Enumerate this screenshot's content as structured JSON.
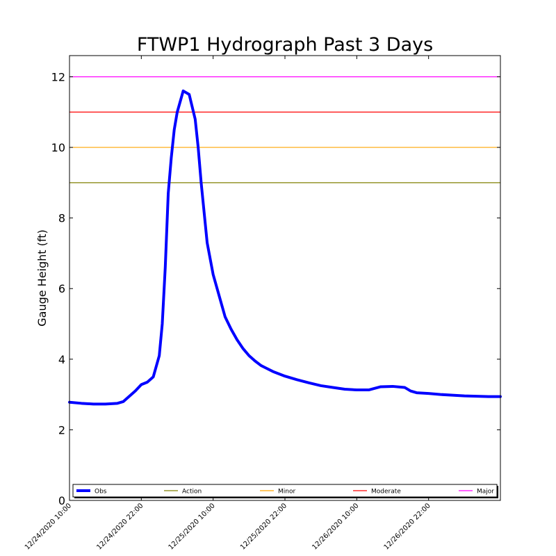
{
  "chart_data": {
    "type": "line",
    "title": "FTWP1 Hydrograph Past 3 Days",
    "xlabel": "",
    "ylabel": "Gauge Height (ft)",
    "xlim": [
      "12/24/2020 10:00",
      "12/27/2020 10:00"
    ],
    "ylim": [
      0,
      12.6
    ],
    "yticks": [
      0,
      2,
      4,
      6,
      8,
      10,
      12
    ],
    "xticks": [
      "12/24/2020 10:00",
      "12/24/2020 22:00",
      "12/25/2020 10:00",
      "12/25/2020 22:00",
      "12/26/2020 10:00",
      "12/26/2020 22:00"
    ],
    "grid": false,
    "legend_position": "bottom",
    "series": [
      {
        "name": "Obs",
        "color": "#0000ff",
        "x": [
          "12/24/2020 10:00",
          "12/24/2020 12:00",
          "12/24/2020 14:00",
          "12/24/2020 16:00",
          "12/24/2020 18:00",
          "12/24/2020 19:00",
          "12/24/2020 20:00",
          "12/24/2020 21:00",
          "12/24/2020 22:00",
          "12/24/2020 23:00",
          "12/25/2020 00:00",
          "12/25/2020 01:00",
          "12/25/2020 01:30",
          "12/25/2020 02:00",
          "12/25/2020 02:30",
          "12/25/2020 03:00",
          "12/25/2020 03:30",
          "12/25/2020 04:00",
          "12/25/2020 05:00",
          "12/25/2020 06:00",
          "12/25/2020 07:00",
          "12/25/2020 07:30",
          "12/25/2020 08:00",
          "12/25/2020 09:00",
          "12/25/2020 10:00",
          "12/25/2020 11:00",
          "12/25/2020 12:00",
          "12/25/2020 13:00",
          "12/25/2020 14:00",
          "12/25/2020 15:00",
          "12/25/2020 16:00",
          "12/25/2020 17:00",
          "12/25/2020 18:00",
          "12/25/2020 20:00",
          "12/25/2020 22:00",
          "12/26/2020 00:00",
          "12/26/2020 02:00",
          "12/26/2020 04:00",
          "12/26/2020 06:00",
          "12/26/2020 08:00",
          "12/26/2020 10:00",
          "12/26/2020 12:00",
          "12/26/2020 14:00",
          "12/26/2020 16:00",
          "12/26/2020 18:00",
          "12/26/2020 19:00",
          "12/26/2020 20:00",
          "12/26/2020 22:00",
          "12/27/2020 00:00",
          "12/27/2020 02:00",
          "12/27/2020 04:00",
          "12/27/2020 06:00",
          "12/27/2020 08:00",
          "12/27/2020 10:00"
        ],
        "values": [
          2.78,
          2.75,
          2.73,
          2.73,
          2.75,
          2.8,
          2.95,
          3.1,
          3.28,
          3.35,
          3.5,
          4.1,
          5.0,
          6.6,
          8.7,
          9.7,
          10.5,
          11.0,
          11.6,
          11.5,
          10.8,
          10.0,
          9.0,
          7.3,
          6.4,
          5.8,
          5.2,
          4.85,
          4.55,
          4.3,
          4.1,
          3.95,
          3.82,
          3.65,
          3.52,
          3.42,
          3.33,
          3.25,
          3.2,
          3.15,
          3.13,
          3.13,
          3.22,
          3.23,
          3.2,
          3.1,
          3.05,
          3.03,
          3.0,
          2.98,
          2.96,
          2.95,
          2.94,
          2.94
        ]
      }
    ],
    "thresholds": [
      {
        "name": "Action",
        "value": 9,
        "color": "#808000"
      },
      {
        "name": "Minor",
        "value": 10,
        "color": "#ffa500"
      },
      {
        "name": "Moderate",
        "value": 11,
        "color": "#ff0000"
      },
      {
        "name": "Major",
        "value": 12,
        "color": "#ff00ff"
      }
    ]
  }
}
